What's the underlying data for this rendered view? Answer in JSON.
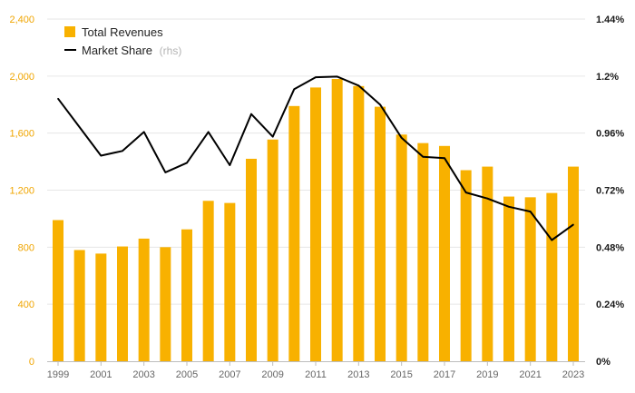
{
  "colors": {
    "bar": "#f8b100",
    "line": "#000000",
    "left_tick": "#f0a500",
    "right_tick": "#1a1a1a"
  },
  "chart_data": {
    "type": "bar+line",
    "categories": [
      "1999",
      "2000",
      "2001",
      "2002",
      "2003",
      "2004",
      "2005",
      "2006",
      "2007",
      "2008",
      "2009",
      "2010",
      "2011",
      "2012",
      "2013",
      "2014",
      "2015",
      "2016",
      "2017",
      "2018",
      "2019",
      "2020",
      "2021",
      "2022",
      "2023"
    ],
    "x_tick_labels": [
      "1999",
      "2001",
      "2003",
      "2005",
      "2007",
      "2009",
      "2011",
      "2013",
      "2015",
      "2017",
      "2019",
      "2021",
      "2023"
    ],
    "series": [
      {
        "name": "Total Revenues",
        "axis": "left",
        "type": "bar",
        "values": [
          990,
          780,
          755,
          805,
          860,
          800,
          925,
          1125,
          1110,
          1420,
          1555,
          1790,
          1920,
          1980,
          1930,
          1785,
          1590,
          1530,
          1510,
          1340,
          1365,
          1155,
          1150,
          1180,
          1365
        ]
      },
      {
        "name": "Market Share",
        "name_suffix": "(rhs)",
        "axis": "right",
        "type": "line",
        "values": [
          1.105,
          0.985,
          0.865,
          0.885,
          0.965,
          0.795,
          0.835,
          0.965,
          0.825,
          1.04,
          0.945,
          1.145,
          1.195,
          1.198,
          1.16,
          1.08,
          0.94,
          0.86,
          0.855,
          0.71,
          0.685,
          0.65,
          0.63,
          0.51,
          0.575
        ]
      }
    ],
    "y_left": {
      "min": 0,
      "max": 2400,
      "ticks": [
        "0",
        "400",
        "800",
        "1,200",
        "1,600",
        "2,000",
        "2,400"
      ]
    },
    "y_right": {
      "min": 0,
      "max": 1.44,
      "ticks": [
        "0%",
        "0.24%",
        "0.48%",
        "0.72%",
        "0.96%",
        "1.2%",
        "1.44%"
      ]
    },
    "legend": {
      "position": "top-left",
      "items": [
        {
          "label": "Total Revenues",
          "suffix": ""
        },
        {
          "label": "Market Share",
          "suffix": "(rhs)"
        }
      ]
    },
    "grid": true
  }
}
